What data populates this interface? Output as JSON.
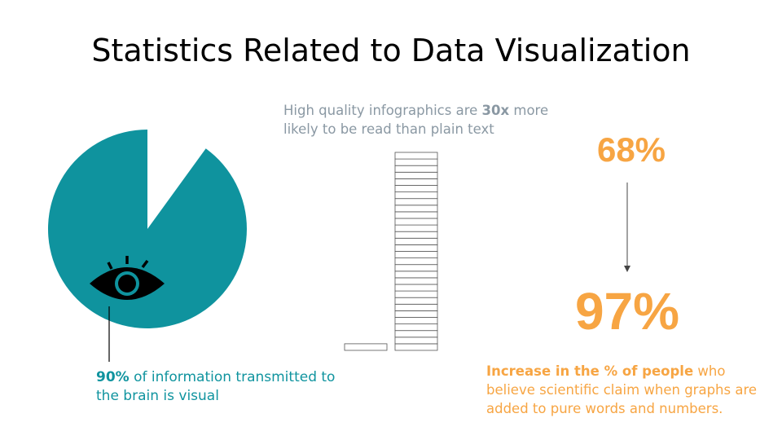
{
  "title": "Statistics Related to Data Visualization",
  "visual_stat": {
    "percent": 90,
    "highlight": "90%",
    "text": " of information transmitted to the brain is visual",
    "color": "#10949f",
    "icon": "eye-icon"
  },
  "infographic_stat": {
    "text_before": "High quality infographics are ",
    "highlight": "30x",
    "text_after": " more likely to be read than plain text",
    "plain_text_units": 1,
    "infographic_units": 30
  },
  "claim_stat": {
    "from": "68%",
    "to": "97%",
    "highlight": "Increase in the % of people",
    "text": " who believe scientific claim when graphs are added to pure words and numbers.",
    "color": "#f7a543"
  }
}
